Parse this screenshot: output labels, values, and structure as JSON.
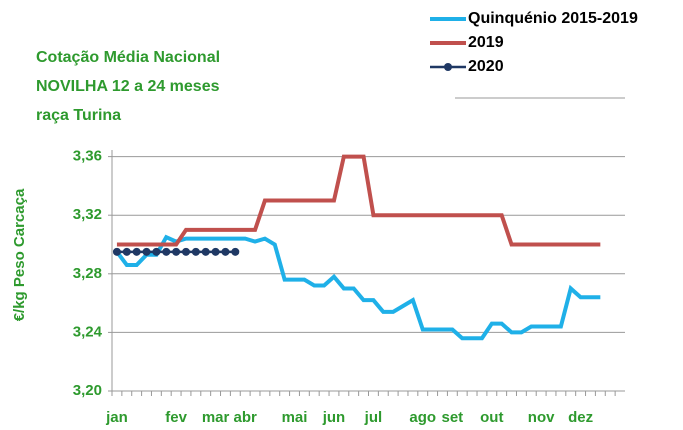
{
  "chart_data": {
    "type": "line",
    "title": [
      "Cotação Média Nacional",
      "NOVILHA 12 a 24 meses",
      "raça Turina"
    ],
    "y_label": "€/kg Peso Carcaça",
    "categories": [
      "jan",
      null,
      null,
      null,
      null,
      null,
      "fev",
      null,
      null,
      null,
      "mar",
      null,
      null,
      "abr",
      null,
      null,
      null,
      null,
      "mai",
      null,
      null,
      null,
      "jun",
      null,
      null,
      null,
      "jul",
      null,
      null,
      null,
      null,
      "ago",
      null,
      null,
      "set",
      null,
      null,
      null,
      "out",
      null,
      null,
      null,
      null,
      "nov",
      null,
      null,
      null,
      "dez",
      null,
      null,
      null,
      null
    ],
    "series": [
      {
        "name": "Quinquénio 2015-2019",
        "color": "#1fb0e8",
        "marker": false,
        "values": [
          3.295,
          3.286,
          3.286,
          3.293,
          3.293,
          3.305,
          3.302,
          3.304,
          3.304,
          3.304,
          3.304,
          3.304,
          3.304,
          3.304,
          3.302,
          3.304,
          3.3,
          3.276,
          3.276,
          3.276,
          3.272,
          3.272,
          3.278,
          3.27,
          3.27,
          3.262,
          3.262,
          3.254,
          3.254,
          3.258,
          3.262,
          3.242,
          3.242,
          3.242,
          3.242,
          3.236,
          3.236,
          3.236,
          3.246,
          3.246,
          3.24,
          3.24,
          3.244,
          3.244,
          3.244,
          3.244,
          3.27,
          3.264,
          3.264,
          3.264,
          null,
          null
        ]
      },
      {
        "name": "2019",
        "color": "#c0504d",
        "marker": false,
        "values": [
          3.3,
          3.3,
          3.3,
          3.3,
          3.3,
          3.3,
          3.3,
          3.31,
          3.31,
          3.31,
          3.31,
          3.31,
          3.31,
          3.31,
          3.31,
          3.33,
          3.33,
          3.33,
          3.33,
          3.33,
          3.33,
          3.33,
          3.33,
          3.36,
          3.36,
          3.36,
          3.32,
          3.32,
          3.32,
          3.32,
          3.32,
          3.32,
          3.32,
          3.32,
          3.32,
          3.32,
          3.32,
          3.32,
          3.32,
          3.32,
          3.3,
          3.3,
          3.3,
          3.3,
          3.3,
          3.3,
          3.3,
          3.3,
          3.3,
          3.3,
          null,
          null
        ]
      },
      {
        "name": "2020",
        "color": "#1f3864",
        "marker": true,
        "values": [
          3.295,
          3.295,
          3.295,
          3.295,
          3.295,
          3.295,
          3.295,
          3.295,
          3.295,
          3.295,
          3.295,
          3.295,
          3.295,
          null,
          null,
          null,
          null,
          null,
          null,
          null,
          null,
          null,
          null,
          null,
          null,
          null,
          null,
          null,
          null,
          null,
          null,
          null,
          null,
          null,
          null,
          null,
          null,
          null,
          null,
          null,
          null,
          null,
          null,
          null,
          null,
          null,
          null,
          null,
          null,
          null,
          null,
          null
        ]
      }
    ],
    "ylim": [
      3.2,
      3.4
    ],
    "yticks": [
      {
        "value": 3.2,
        "label": "3,20"
      },
      {
        "value": 3.24,
        "label": "3,24"
      },
      {
        "value": 3.28,
        "label": "3,28"
      },
      {
        "value": 3.32,
        "label": "3,32"
      },
      {
        "value": 3.36,
        "label": "3,36"
      }
    ],
    "grid": true
  }
}
